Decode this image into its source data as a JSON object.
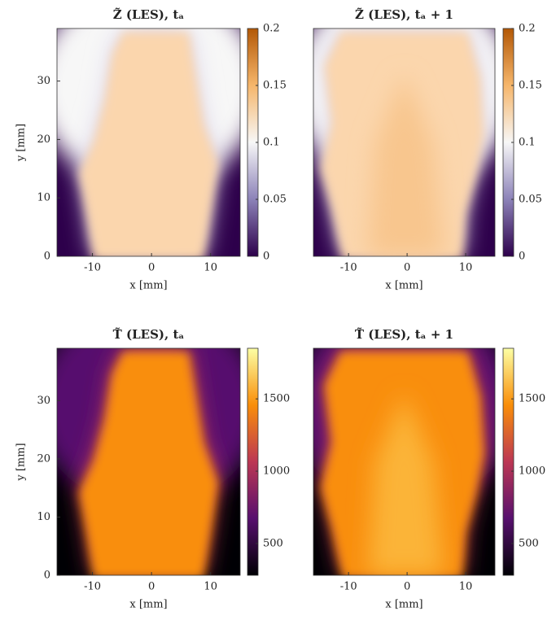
{
  "chart_data": [
    {
      "type": "heatmap",
      "title": "Z̃ (LES), tₐ",
      "x_label": "x [mm]",
      "y_label": "y [mm]",
      "xlim": [
        -16,
        15
      ],
      "ylim": [
        0,
        39
      ],
      "xticks": [
        -10,
        0,
        10
      ],
      "yticks": [
        0,
        10,
        20,
        30
      ],
      "colorbar": {
        "lim": [
          0,
          0.2
        ],
        "ticks": [
          0,
          0.05,
          0.1,
          0.15,
          0.2
        ],
        "colors": [
          "#2d004b",
          "#8c82b8",
          "#f7f7f7",
          "#f6b66b",
          "#b35806"
        ]
      }
    },
    {
      "type": "heatmap",
      "title": "Z̃ (LES), tₐ + 1",
      "x_label": "x [mm]",
      "xlim": [
        -16,
        15
      ],
      "ylim": [
        0,
        39
      ],
      "xticks": [
        -10,
        0,
        10
      ],
      "colorbar": {
        "lim": [
          0,
          0.2
        ],
        "ticks": [
          0,
          0.05,
          0.1,
          0.15,
          0.2
        ],
        "colors": [
          "#2d004b",
          "#8c82b8",
          "#f7f7f7",
          "#f6b66b",
          "#b35806"
        ]
      }
    },
    {
      "type": "heatmap",
      "title": "T̃ (LES), tₐ",
      "x_label": "x [mm]",
      "y_label": "y [mm]",
      "xlim": [
        -16,
        15
      ],
      "ylim": [
        0,
        39
      ],
      "xticks": [
        -10,
        0,
        10
      ],
      "yticks": [
        0,
        10,
        20,
        30
      ],
      "colorbar": {
        "lim": [
          280,
          1850
        ],
        "ticks": [
          500,
          1000,
          1500
        ],
        "colors": [
          "#000004",
          "#57106e",
          "#bc3754",
          "#f98e09",
          "#fcffa4"
        ]
      }
    },
    {
      "type": "heatmap",
      "title": "T̃ (LES), tₐ + 1",
      "x_label": "x [mm]",
      "xlim": [
        -16,
        15
      ],
      "ylim": [
        0,
        39
      ],
      "xticks": [
        -10,
        0,
        10
      ],
      "colorbar": {
        "lim": [
          280,
          1850
        ],
        "ticks": [
          500,
          1000,
          1500
        ],
        "colors": [
          "#000004",
          "#57106e",
          "#bc3754",
          "#f98e09",
          "#fcffa4"
        ]
      }
    }
  ]
}
